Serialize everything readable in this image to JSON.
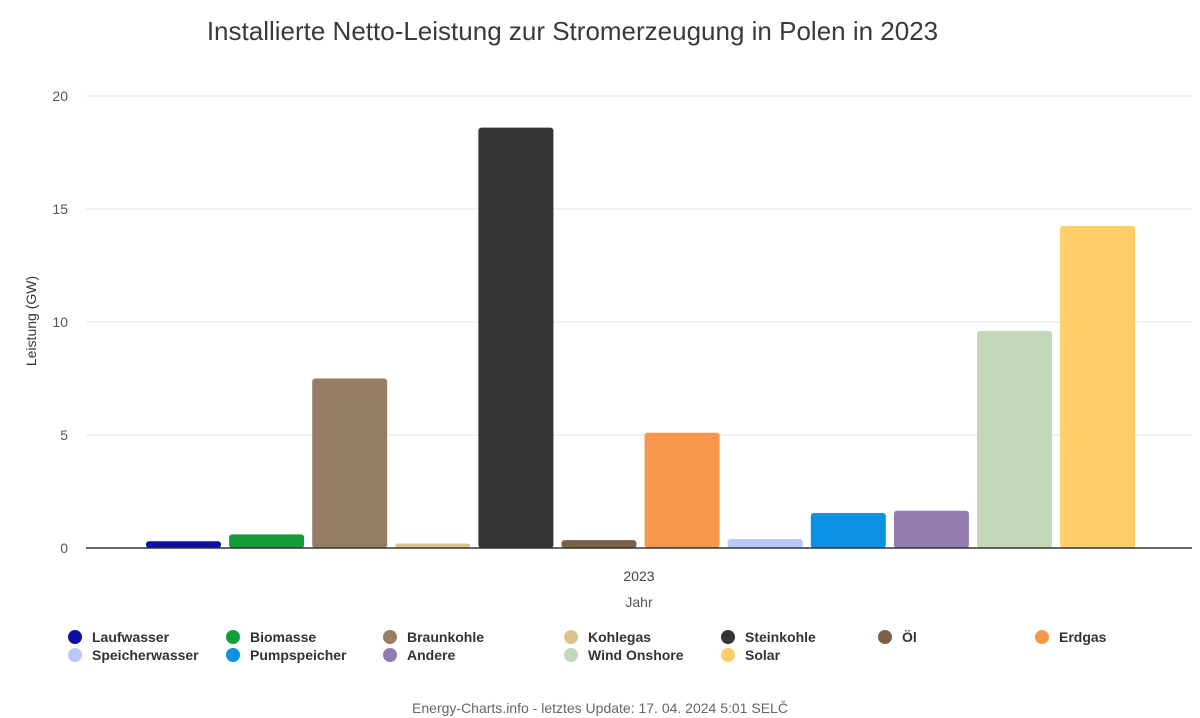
{
  "chart_data": {
    "type": "bar",
    "title": "Installierte Netto-Leistung zur Stromerzeugung in Polen in 2023",
    "xlabel": "Jahr",
    "ylabel": "Leistung (GW)",
    "categories": [
      "2023"
    ],
    "ylim": [
      0,
      20
    ],
    "yticks": [
      "0",
      "5",
      "10",
      "15",
      "20"
    ],
    "grid": true,
    "legend_placement": "bottom",
    "series": [
      {
        "name": "Laufwasser",
        "values": [
          0.3
        ],
        "color": "#0f0fa8"
      },
      {
        "name": "Biomasse",
        "values": [
          0.6
        ],
        "color": "#139b3c"
      },
      {
        "name": "Braunkohle",
        "values": [
          7.5
        ],
        "color": "#967d65"
      },
      {
        "name": "Kohlegas",
        "values": [
          0.2
        ],
        "color": "#dcc38c"
      },
      {
        "name": "Steinkohle",
        "values": [
          18.6
        ],
        "color": "#333333"
      },
      {
        "name": "Öl",
        "values": [
          0.35
        ],
        "color": "#7b5f47"
      },
      {
        "name": "Erdgas",
        "values": [
          5.1
        ],
        "color": "#f7974c"
      },
      {
        "name": "Speicherwasser",
        "values": [
          0.4
        ],
        "color": "#b7c8f8"
      },
      {
        "name": "Pumpspeicher",
        "values": [
          1.55
        ],
        "color": "#0b92e2"
      },
      {
        "name": "Andere",
        "values": [
          1.65
        ],
        "color": "#927db1"
      },
      {
        "name": "Wind Onshore",
        "values": [
          9.6
        ],
        "color": "#c3d8b8"
      },
      {
        "name": "Solar",
        "values": [
          14.25
        ],
        "color": "#fece69"
      }
    ]
  },
  "footer": "Energy-Charts.info - letztes Update: 17. 04. 2024 5:01 SELČ"
}
